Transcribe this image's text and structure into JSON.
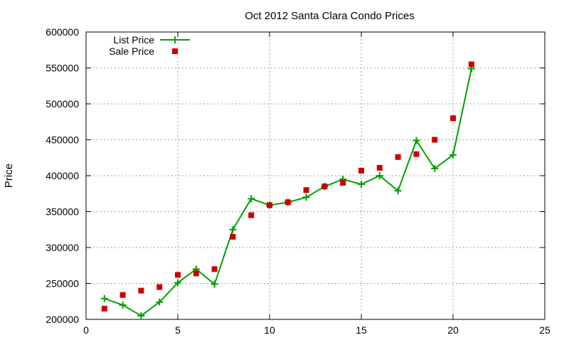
{
  "chart_data": {
    "type": "line",
    "title": "Oct 2012 Santa Clara Condo Prices",
    "xlabel": "",
    "ylabel": "Price",
    "xlim": [
      0,
      25
    ],
    "ylim": [
      200000,
      600000
    ],
    "xticks": [
      0,
      5,
      10,
      15,
      20,
      25
    ],
    "yticks": [
      200000,
      250000,
      300000,
      350000,
      400000,
      450000,
      500000,
      550000,
      600000
    ],
    "grid": true,
    "legend_position": "top-left",
    "series": [
      {
        "name": "List Price",
        "style": "line-points",
        "marker": "plus",
        "color": "#00a000",
        "x": [
          1,
          2,
          3,
          4,
          5,
          6,
          7,
          8,
          9,
          10,
          11,
          12,
          13,
          14,
          15,
          16,
          17,
          18,
          19,
          20,
          21
        ],
        "y": [
          229000,
          220000,
          205000,
          224000,
          251000,
          270000,
          249000,
          325000,
          368000,
          359000,
          363000,
          370000,
          385000,
          395000,
          388000,
          400000,
          379000,
          449000,
          410000,
          429000,
          549000
        ]
      },
      {
        "name": "Sale Price",
        "style": "points",
        "marker": "square",
        "color": "#cc0000",
        "x": [
          1,
          2,
          3,
          4,
          5,
          6,
          7,
          8,
          9,
          10,
          11,
          12,
          13,
          14,
          15,
          16,
          17,
          18,
          19,
          20,
          21
        ],
        "y": [
          215000,
          234000,
          240000,
          245000,
          262000,
          264000,
          270000,
          315000,
          345000,
          359000,
          363000,
          380000,
          385000,
          390000,
          407000,
          411000,
          426000,
          430000,
          450000,
          480000,
          555000
        ]
      }
    ]
  }
}
